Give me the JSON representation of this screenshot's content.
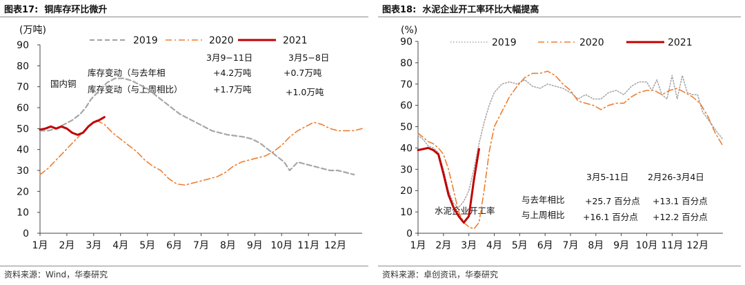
{
  "left": {
    "fig_label": "图表17:",
    "fig_title": "铜库存环比微升",
    "source": "资料来源：Wind，华泰研究",
    "unit_label": "(万吨)",
    "annotations": {
      "series_label": "国内铜",
      "row1_label": "库存变动（与去年相",
      "row2_label": "库存变动（与上周相比）",
      "col1_header": "3月9−11日",
      "col2_header": "3月5−8日",
      "col1_row1": "+4.2万吨",
      "col2_row1": "+0.7万吨",
      "col1_row2": "+1.7万吨",
      "col2_row2": "+1.0万吨"
    }
  },
  "right": {
    "fig_label": "图表18:",
    "fig_title": "水泥企业开工率环比大幅提高",
    "source": "资料来源：卓创资讯，华泰研究",
    "unit_label": "(%)",
    "annotations": {
      "series_label": "水泥企业开工率",
      "row1_label": "与去年相比",
      "row2_label": "与上周相比",
      "col1_header": "3月5-11日",
      "col2_header": "2月26-3月4日",
      "col1_row1": "+25.7 百分点",
      "col2_row1": "+13.1 百分点",
      "col1_row2": "+16.1 百分点",
      "col2_row2": "+12.2 百分点"
    }
  },
  "chart_data": [
    {
      "type": "line",
      "title": "铜库存环比微升",
      "ylabel": "(万吨)",
      "ylim": [
        0,
        90
      ],
      "yticks": [
        0,
        10,
        20,
        30,
        40,
        50,
        60,
        70,
        80,
        90
      ],
      "x_unit": "month",
      "xlim": [
        1,
        13
      ],
      "xticks": [
        "1月",
        "2月",
        "3月",
        "4月",
        "5月",
        "6月",
        "7月",
        "8月",
        "9月",
        "10月",
        "11月",
        "12月"
      ],
      "legend_position": "top",
      "series": [
        {
          "name": "2019",
          "color": "#a6a6a6",
          "style": "dashed",
          "x": [
            1.0,
            1.3,
            1.6,
            1.9,
            2.2,
            2.5,
            2.7,
            2.9,
            3.2,
            3.5,
            3.8,
            4.1,
            4.4,
            4.7,
            5.0,
            5.3,
            5.6,
            5.9,
            6.2,
            6.5,
            6.8,
            7.1,
            7.4,
            7.7,
            8.0,
            8.3,
            8.6,
            8.9,
            9.2,
            9.5,
            9.8,
            10.1,
            10.3,
            10.6,
            10.9,
            11.2,
            11.5,
            11.8,
            12.1,
            12.4,
            12.7
          ],
          "y": [
            49,
            49,
            50,
            52,
            54,
            57,
            60,
            64,
            68,
            72,
            74,
            74,
            73,
            71,
            69,
            66,
            63,
            60,
            57,
            55,
            53,
            51,
            49,
            48,
            47,
            46.5,
            46,
            45,
            43,
            40,
            37,
            34,
            30,
            34,
            33,
            32,
            31,
            30,
            30,
            29,
            28
          ]
        },
        {
          "name": "2020",
          "color": "#ed7d31",
          "style": "dash-dot",
          "x": [
            1.0,
            1.3,
            1.6,
            1.9,
            2.2,
            2.5,
            2.8,
            3.1,
            3.4,
            3.7,
            4.0,
            4.3,
            4.6,
            4.9,
            5.2,
            5.5,
            5.8,
            6.1,
            6.4,
            6.7,
            7.0,
            7.3,
            7.6,
            7.9,
            8.2,
            8.5,
            8.8,
            9.1,
            9.4,
            9.7,
            10.0,
            10.3,
            10.6,
            10.9,
            11.2,
            11.5,
            11.8,
            12.1,
            12.4,
            12.7,
            13.0
          ],
          "y": [
            28,
            31,
            35,
            39,
            43,
            47,
            51,
            54,
            52,
            48,
            45,
            42,
            39,
            35,
            32,
            30,
            26,
            23.5,
            23,
            24,
            25,
            26,
            27,
            29,
            32,
            34,
            35,
            36,
            37,
            39,
            42,
            46,
            49,
            51,
            53,
            52,
            50,
            49,
            49,
            49,
            50
          ]
        },
        {
          "name": "2021",
          "color": "#c00000",
          "style": "solid",
          "x": [
            1.0,
            1.2,
            1.4,
            1.6,
            1.8,
            2.0,
            2.2,
            2.4,
            2.6,
            2.8,
            3.0,
            3.2,
            3.4
          ],
          "y": [
            49.5,
            50,
            51,
            50,
            51,
            50,
            48,
            47,
            48,
            51,
            53,
            54,
            55.5
          ]
        }
      ]
    },
    {
      "type": "line",
      "title": "水泥企业开工率环比大幅提高",
      "ylabel": "(%)",
      "ylim": [
        0,
        90
      ],
      "yticks": [
        0,
        10,
        20,
        30,
        40,
        50,
        60,
        70,
        80,
        90
      ],
      "x_unit": "month",
      "xlim": [
        1,
        13
      ],
      "xticks": [
        "1月",
        "2月",
        "3月",
        "4月",
        "5月",
        "6月",
        "7月",
        "8月",
        "9月",
        "10月",
        "11月",
        "12月"
      ],
      "legend_position": "top",
      "series": [
        {
          "name": "2019",
          "color": "#a6a6a6",
          "style": "dotted",
          "x": [
            1.0,
            1.2,
            1.4,
            1.6,
            1.8,
            2.0,
            2.2,
            2.4,
            2.6,
            2.8,
            3.0,
            3.2,
            3.4,
            3.6,
            3.8,
            4.0,
            4.3,
            4.6,
            4.9,
            5.2,
            5.5,
            5.8,
            6.1,
            6.4,
            6.7,
            7.0,
            7.3,
            7.6,
            7.9,
            8.2,
            8.5,
            8.8,
            9.1,
            9.4,
            9.7,
            10.0,
            10.2,
            10.4,
            10.6,
            10.8,
            11.0,
            11.2,
            11.4,
            11.6,
            11.8,
            12.0,
            12.2,
            12.5,
            12.8,
            13.0
          ],
          "y": [
            46,
            44,
            41,
            40,
            38,
            30,
            20,
            14,
            12,
            15,
            20,
            30,
            42,
            52,
            60,
            66,
            70,
            71,
            70,
            72,
            69,
            68,
            70,
            69,
            68,
            66,
            63,
            65,
            63,
            63,
            66,
            67,
            65,
            69,
            71,
            71,
            67,
            72,
            65,
            63,
            74,
            63,
            74,
            66,
            65,
            65,
            57,
            52,
            47,
            44
          ]
        },
        {
          "name": "2020",
          "color": "#ed7d31",
          "style": "dash-dot",
          "x": [
            1.0,
            1.2,
            1.4,
            1.6,
            1.8,
            2.0,
            2.2,
            2.4,
            2.6,
            2.8,
            3.0,
            3.2,
            3.4,
            3.6,
            3.8,
            4.0,
            4.3,
            4.6,
            4.9,
            5.2,
            5.5,
            5.8,
            6.1,
            6.4,
            6.7,
            7.0,
            7.3,
            7.6,
            7.9,
            8.2,
            8.5,
            8.8,
            9.1,
            9.4,
            9.7,
            10.0,
            10.3,
            10.6,
            10.9,
            11.2,
            11.5,
            11.8,
            12.1,
            12.4,
            12.7,
            13.0
          ],
          "y": [
            47,
            45,
            43,
            42,
            40,
            37,
            30,
            20,
            10,
            5,
            3,
            2,
            5,
            20,
            38,
            50,
            57,
            64,
            69,
            73,
            75,
            75,
            76,
            74,
            70,
            67,
            62,
            61,
            60,
            58,
            60,
            61,
            61,
            64,
            66,
            67,
            67,
            65,
            67,
            68,
            66,
            64,
            61,
            55,
            47,
            41
          ]
        },
        {
          "name": "2021",
          "color": "#c00000",
          "style": "solid",
          "x": [
            1.0,
            1.2,
            1.4,
            1.6,
            1.8,
            2.0,
            2.2,
            2.4,
            2.6,
            2.8,
            3.0,
            3.2,
            3.4
          ],
          "y": [
            39,
            39.5,
            40,
            39,
            37,
            28,
            18,
            12,
            8,
            5,
            8,
            25,
            39.5
          ]
        }
      ]
    }
  ]
}
